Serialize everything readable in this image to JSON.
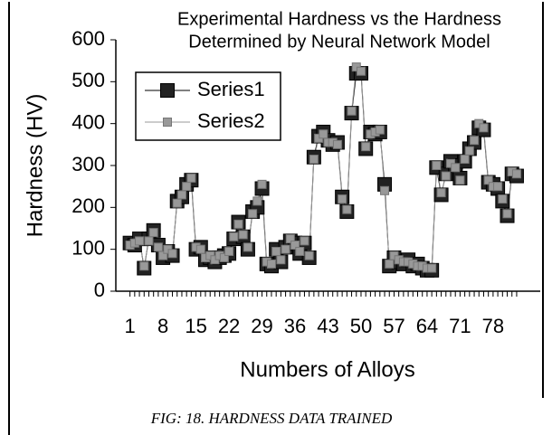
{
  "chart_data": {
    "type": "line",
    "title": [
      "Experimental Hardness vs the Hardness",
      "Determined by Neural Network Model"
    ],
    "y_label": "Hardness (HV)",
    "x_label": "Numbers of Alloys",
    "caption": "FIG: 18. HARDNESS DATA TRAINED",
    "x": [
      1,
      2,
      3,
      4,
      5,
      6,
      7,
      8,
      9,
      10,
      11,
      12,
      13,
      14,
      15,
      16,
      17,
      18,
      19,
      20,
      21,
      22,
      23,
      24,
      25,
      26,
      27,
      28,
      29,
      30,
      31,
      32,
      33,
      34,
      35,
      36,
      37,
      38,
      39,
      40,
      41,
      42,
      43,
      44,
      45,
      46,
      47,
      48,
      49,
      50,
      51,
      52,
      53,
      54,
      55,
      56,
      57,
      58,
      59,
      60,
      61,
      62,
      63,
      64,
      65,
      66,
      67,
      68,
      69,
      70,
      71,
      72,
      73,
      74,
      75,
      76,
      77,
      78,
      79,
      80,
      81,
      82,
      83
    ],
    "series": [
      {
        "name": "Series1",
        "color": "#000000",
        "values": [
          115,
          110,
          125,
          55,
          125,
          145,
          110,
          80,
          95,
          85,
          215,
          225,
          255,
          265,
          100,
          105,
          75,
          80,
          70,
          80,
          85,
          90,
          125,
          165,
          130,
          100,
          190,
          200,
          245,
          65,
          60,
          100,
          70,
          105,
          120,
          115,
          90,
          115,
          80,
          320,
          370,
          380,
          360,
          350,
          355,
          225,
          190,
          425,
          520,
          520,
          340,
          380,
          375,
          380,
          255,
          60,
          80,
          70,
          65,
          75,
          60,
          65,
          55,
          50,
          50,
          295,
          230,
          280,
          310,
          300,
          270,
          310,
          340,
          355,
          390,
          385,
          260,
          255,
          245,
          215,
          180,
          280,
          275
        ]
      },
      {
        "name": "Series2",
        "color": "#999999",
        "values": [
          110,
          115,
          120,
          60,
          120,
          140,
          105,
          85,
          100,
          90,
          210,
          230,
          250,
          270,
          105,
          100,
          80,
          85,
          75,
          85,
          80,
          95,
          130,
          160,
          135,
          105,
          185,
          215,
          255,
          70,
          65,
          95,
          75,
          100,
          125,
          110,
          95,
          120,
          85,
          315,
          365,
          375,
          355,
          355,
          350,
          220,
          195,
          430,
          535,
          525,
          345,
          375,
          380,
          385,
          240,
          65,
          85,
          75,
          70,
          70,
          65,
          60,
          60,
          55,
          55,
          300,
          235,
          275,
          305,
          295,
          265,
          315,
          335,
          360,
          400,
          390,
          265,
          250,
          250,
          220,
          185,
          285,
          280
        ]
      }
    ],
    "xlim": [
      -2,
      88
    ],
    "xticks": [
      1,
      8,
      15,
      22,
      29,
      36,
      43,
      50,
      57,
      64,
      71,
      78
    ],
    "ylim": [
      0,
      600
    ],
    "yticks": [
      0,
      100,
      200,
      300,
      400,
      500,
      600
    ],
    "legend": "upper-left",
    "grid": false
  }
}
